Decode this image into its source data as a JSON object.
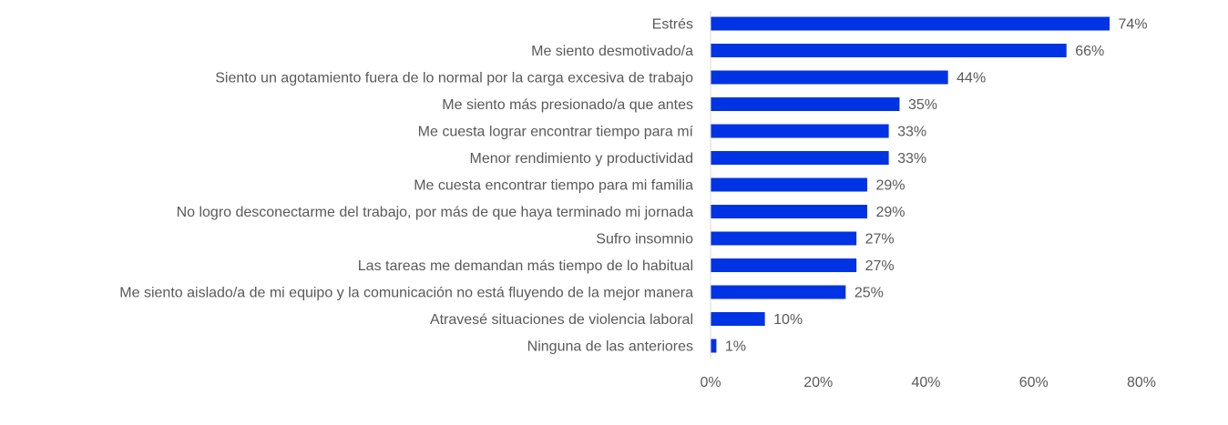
{
  "chart_data": {
    "type": "bar",
    "orientation": "horizontal",
    "title": "",
    "xlabel": "",
    "ylabel": "",
    "xlim": [
      0,
      80
    ],
    "x_ticks": [
      0,
      20,
      40,
      60,
      80
    ],
    "x_tick_labels": [
      "0%",
      "20%",
      "40%",
      "60%",
      "80%"
    ],
    "grid": false,
    "bar_color": "#0033E3",
    "categories": [
      "Estrés",
      "Me siento desmotivado/a",
      "Siento un agotamiento fuera de lo normal por la carga excesiva de trabajo",
      "Me siento más presionado/a que antes",
      "Me cuesta lograr encontrar tiempo para mí",
      "Menor rendimiento y productividad",
      "Me cuesta encontrar tiempo para mi familia",
      "No logro desconectarme del trabajo, por más de que haya terminado mi jornada",
      "Sufro insomnio",
      "Las tareas me demandan más tiempo de lo habitual",
      "Me siento aislado/a de mi equipo y la comunicación no está fluyendo de la mejor manera",
      "Atravesé situaciones de violencia laboral",
      "Ninguna de las anteriores"
    ],
    "values": [
      74,
      66,
      44,
      35,
      33,
      33,
      29,
      29,
      27,
      27,
      25,
      10,
      1
    ],
    "data_labels": [
      "74%",
      "66%",
      "44%",
      "35%",
      "33%",
      "33%",
      "29%",
      "29%",
      "27%",
      "27%",
      "25%",
      "10%",
      "1%"
    ]
  }
}
